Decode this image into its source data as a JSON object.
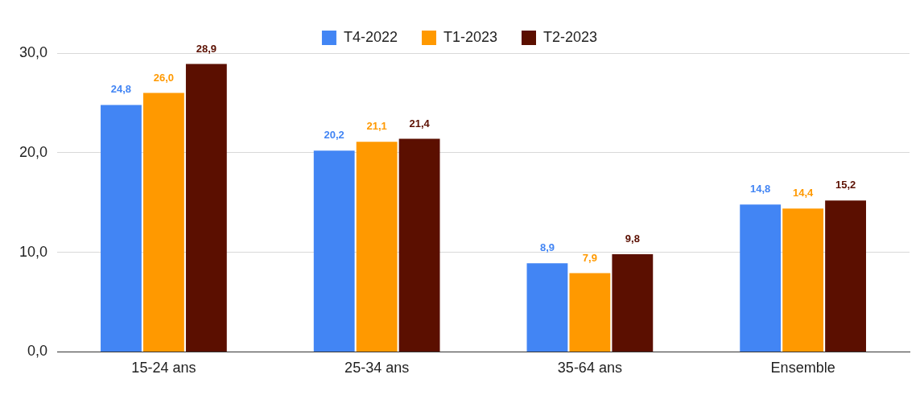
{
  "chart_data": {
    "type": "bar",
    "categories": [
      "15-24 ans",
      "25-34 ans",
      "35-64 ans",
      "Ensemble"
    ],
    "series": [
      {
        "name": "T4-2022",
        "color": "#4285f4",
        "values": [
          24.8,
          20.2,
          8.9,
          14.8
        ],
        "value_labels": [
          "24,8",
          "20,2",
          "8,9",
          "14,8"
        ]
      },
      {
        "name": "T1-2023",
        "color": "#ff9900",
        "values": [
          26.0,
          21.1,
          7.9,
          14.4
        ],
        "value_labels": [
          "26,0",
          "21,1",
          "7,9",
          "14,4"
        ]
      },
      {
        "name": "T2-2023",
        "color": "#5b0f00",
        "values": [
          28.9,
          21.4,
          9.8,
          15.2
        ],
        "value_labels": [
          "28,9",
          "21,4",
          "9,8",
          "15,2"
        ]
      }
    ],
    "ylim": [
      0,
      30
    ],
    "yticks": [
      {
        "value": 0,
        "label": "0,0"
      },
      {
        "value": 10,
        "label": "10,0"
      },
      {
        "value": 20,
        "label": "20,0"
      },
      {
        "value": 30,
        "label": "30,0"
      }
    ],
    "grid": "y",
    "legend": "top"
  }
}
